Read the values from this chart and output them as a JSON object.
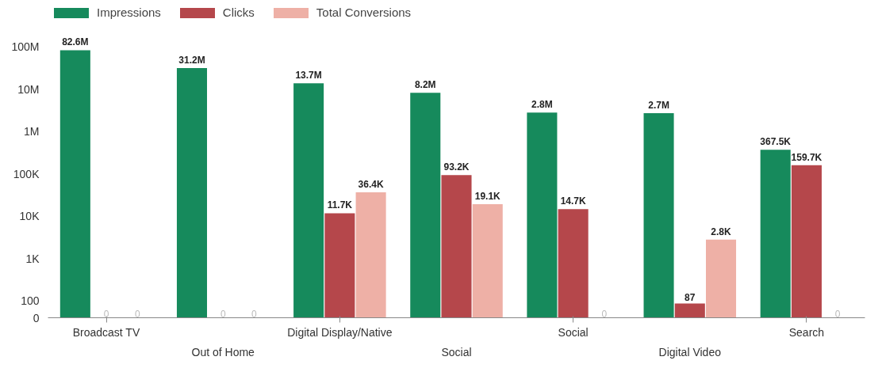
{
  "chart_data": {
    "type": "bar",
    "categories": [
      "Broadcast TV",
      "Out of Home",
      "Digital Display/Native",
      "Social",
      "Social",
      "Digital Video",
      "Search"
    ],
    "series": [
      {
        "name": "Impressions",
        "color": "#168a5c",
        "values": [
          82600000,
          31200000,
          13700000,
          8200000,
          2800000,
          2700000,
          367500
        ],
        "value_labels": [
          "82.6M",
          "31.2M",
          "13.7M",
          "8.2M",
          "2.8M",
          "2.7M",
          "367.5K"
        ]
      },
      {
        "name": "Clicks",
        "color": "#b5474b",
        "values": [
          null,
          null,
          11700,
          93200,
          14700,
          87,
          159700
        ],
        "value_labels": [
          "0",
          "0",
          "11.7K",
          "93.2K",
          "14.7K",
          "87",
          "159.7K"
        ]
      },
      {
        "name": "Total Conversions",
        "color": "#eeb0a6",
        "values": [
          null,
          null,
          36400,
          19100,
          null,
          2800,
          null
        ],
        "value_labels": [
          "0",
          "0",
          "36.4K",
          "19.1K",
          "0",
          "2.8K",
          "0"
        ]
      }
    ],
    "log": true,
    "ylim": [
      40,
      1000000000
    ],
    "yticks": [
      100,
      {
        "value": 1000,
        "label": "1K"
      },
      {
        "value": 10000,
        "label": "10K"
      },
      {
        "value": 100000,
        "label": "100K"
      },
      {
        "value": 1000000,
        "label": "1M"
      },
      {
        "value": 10000000,
        "label": "10M"
      },
      {
        "value": 100000000,
        "label": "100M"
      }
    ],
    "annotations": [
      "0"
    ],
    "grid": false,
    "legend": "top left"
  }
}
